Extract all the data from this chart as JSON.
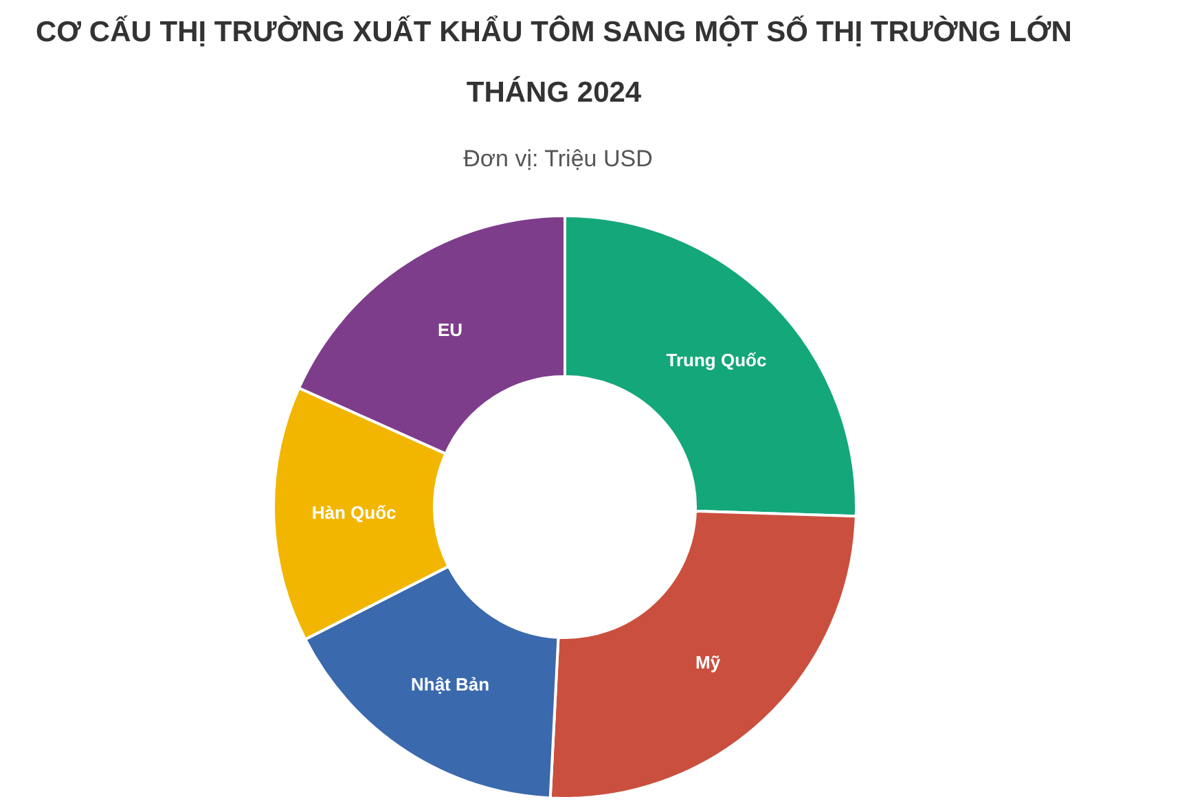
{
  "chart_data": {
    "type": "donut",
    "title": "CƠ CẤU THỊ TRƯỜNG XUẤT KHẨU TÔM SANG MỘT SỐ THỊ TRƯỜNG LỚN THÁNG 2024",
    "subtitle": "Đơn vị: Triệu USD",
    "categories": [
      "Trung Quốc",
      "Mỹ",
      "Nhật Bản",
      "Hàn Quốc",
      "EU"
    ],
    "values": [
      25.5,
      25.3,
      16.7,
      14.2,
      18.3
    ],
    "colors": [
      "#14a77a",
      "#cb4f3e",
      "#3b69ad",
      "#f2b600",
      "#7e3d8b"
    ],
    "legend": false
  }
}
